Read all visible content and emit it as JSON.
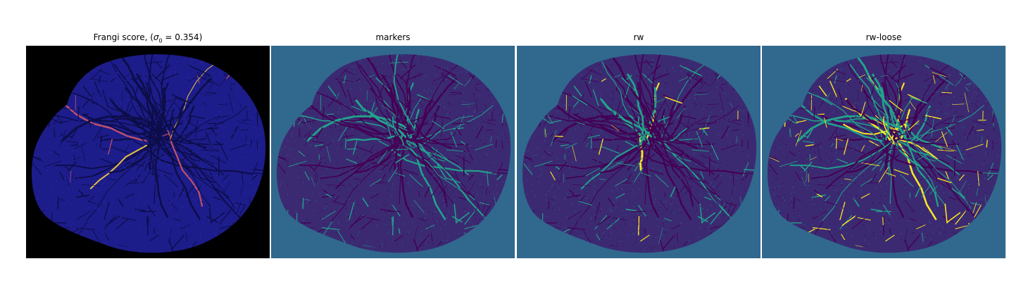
{
  "panels": [
    {
      "title_prefix": "Frangi score, (",
      "sigma_symbol": "σ",
      "sigma_subscript": "0",
      "title_suffix": " = 0.354)"
    },
    {
      "title": "markers"
    },
    {
      "title": "rw"
    },
    {
      "title": "rw-loose"
    }
  ],
  "colors": {
    "frangi_background": "#000000",
    "frangi_blob": "#1c1c8a",
    "frangi_vessel": "#0d0d4a",
    "frangi_highlight_a": "#c0506a",
    "frangi_highlight_b": "#e8c040",
    "viridis_background": "#31688e",
    "viridis_blob": "#3b2a72",
    "viridis_dark": "#440154",
    "viridis_teal": "#21a38a",
    "viridis_yellow": "#fde725"
  }
}
